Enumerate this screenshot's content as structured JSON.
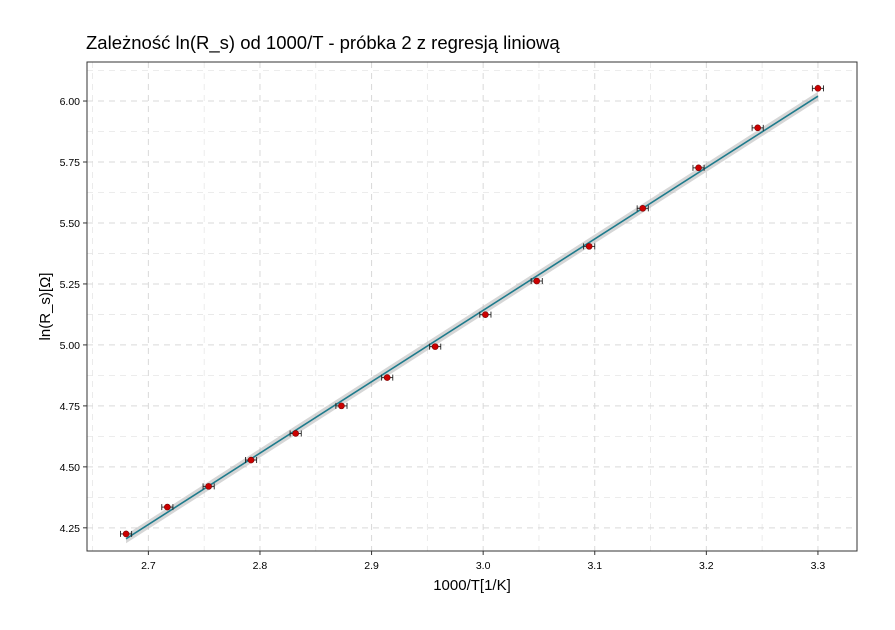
{
  "chart_data": {
    "type": "scatter",
    "title": "Zależność ln(R_s) od 1000/T - próbka 2 z regresją liniową",
    "xlabel": "1000/T[1/K]",
    "ylabel": "ln(R_s)[Ω]",
    "xlim": [
      2.645,
      3.335
    ],
    "ylim": [
      4.155,
      6.16
    ],
    "xticks": [
      "2.7",
      "2.8",
      "2.9",
      "3.0",
      "3.1",
      "3.2",
      "3.3"
    ],
    "xtick_values": [
      2.7,
      2.8,
      2.9,
      3.0,
      3.1,
      3.2,
      3.3
    ],
    "yticks": [
      "4.25",
      "4.50",
      "4.75",
      "5.00",
      "5.25",
      "5.50",
      "5.75",
      "6.00"
    ],
    "ytick_values": [
      4.25,
      4.5,
      4.75,
      5.0,
      5.25,
      5.5,
      5.75,
      6.0
    ],
    "grid": true,
    "grid_style": "dashed",
    "points": {
      "x": [
        2.68,
        2.717,
        2.754,
        2.792,
        2.832,
        2.873,
        2.914,
        2.957,
        3.002,
        3.048,
        3.095,
        3.143,
        3.193,
        3.246,
        3.3
      ],
      "y": [
        4.225,
        4.335,
        4.42,
        4.528,
        4.637,
        4.75,
        4.866,
        4.993,
        5.124,
        5.262,
        5.404,
        5.56,
        5.726,
        5.89,
        6.052
      ],
      "xerr": 0.005,
      "color": "#cc0000"
    },
    "regression": {
      "x": [
        2.68,
        3.3
      ],
      "y": [
        4.205,
        6.02
      ],
      "band": 0.018,
      "line_color": "#1e7b8c",
      "band_color": "#b4b4b4"
    }
  }
}
